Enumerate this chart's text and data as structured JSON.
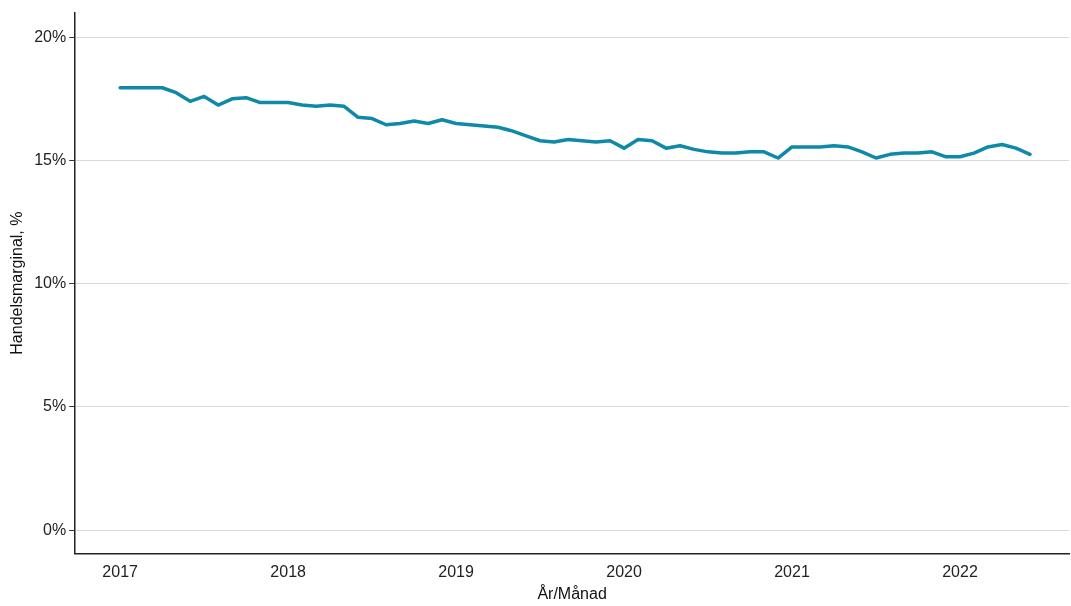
{
  "chart_data": {
    "type": "line",
    "xlabel": "År/Månad",
    "ylabel": "Handelsmarginal, %",
    "x": [
      "2017-01",
      "2017-02",
      "2017-03",
      "2017-04",
      "2017-05",
      "2017-06",
      "2017-07",
      "2017-08",
      "2017-09",
      "2017-10",
      "2017-11",
      "2017-12",
      "2018-01",
      "2018-02",
      "2018-03",
      "2018-04",
      "2018-05",
      "2018-06",
      "2018-07",
      "2018-08",
      "2018-09",
      "2018-10",
      "2018-11",
      "2018-12",
      "2019-01",
      "2019-02",
      "2019-03",
      "2019-04",
      "2019-05",
      "2019-06",
      "2019-07",
      "2019-08",
      "2019-09",
      "2019-10",
      "2019-11",
      "2019-12",
      "2020-01",
      "2020-02",
      "2020-03",
      "2020-04",
      "2020-05",
      "2020-06",
      "2020-07",
      "2020-08",
      "2020-09",
      "2020-10",
      "2020-11",
      "2020-12",
      "2021-01",
      "2021-02",
      "2021-03",
      "2021-04",
      "2021-05",
      "2021-06",
      "2021-07",
      "2021-08",
      "2021-09",
      "2021-10",
      "2021-11",
      "2021-12",
      "2022-01",
      "2022-02",
      "2022-03",
      "2022-04",
      "2022-05",
      "2022-06"
    ],
    "series": [
      {
        "color": "#0e89a8",
        "values": [
          17.95,
          17.95,
          17.95,
          17.95,
          17.75,
          17.4,
          17.6,
          17.25,
          17.5,
          17.55,
          17.35,
          17.35,
          17.35,
          17.25,
          17.2,
          17.25,
          17.2,
          16.75,
          16.7,
          16.45,
          16.5,
          16.6,
          16.5,
          16.65,
          16.5,
          16.45,
          16.4,
          16.35,
          16.2,
          16.0,
          15.8,
          15.75,
          15.85,
          15.8,
          15.75,
          15.8,
          15.5,
          15.85,
          15.8,
          15.5,
          15.6,
          15.45,
          15.35,
          15.3,
          15.3,
          15.35,
          15.35,
          15.1,
          15.55,
          15.55,
          15.55,
          15.6,
          15.55,
          15.35,
          15.1,
          15.25,
          15.3,
          15.3,
          15.35,
          15.15,
          15.15,
          15.3,
          15.55,
          15.65,
          15.5,
          15.25
        ]
      }
    ],
    "xlim": [
      "2016-09-25",
      "2022-08-25"
    ],
    "xticks": [
      {
        "value": "2017",
        "label": "2017"
      },
      {
        "value": "2018",
        "label": "2018"
      },
      {
        "value": "2019",
        "label": "2019"
      },
      {
        "value": "2020",
        "label": "2020"
      },
      {
        "value": "2021",
        "label": "2021"
      },
      {
        "value": "2022",
        "label": "2022"
      }
    ],
    "ylim": [
      -0.95,
      21
    ],
    "yticks": [
      {
        "value": 0,
        "label": "0%"
      },
      {
        "value": 5,
        "label": "5%"
      },
      {
        "value": 10,
        "label": "10%"
      },
      {
        "value": 15,
        "label": "15%"
      },
      {
        "value": 20,
        "label": "20%"
      }
    ],
    "grid": "y",
    "legend": false,
    "marker": "none",
    "line_style": "solid"
  }
}
